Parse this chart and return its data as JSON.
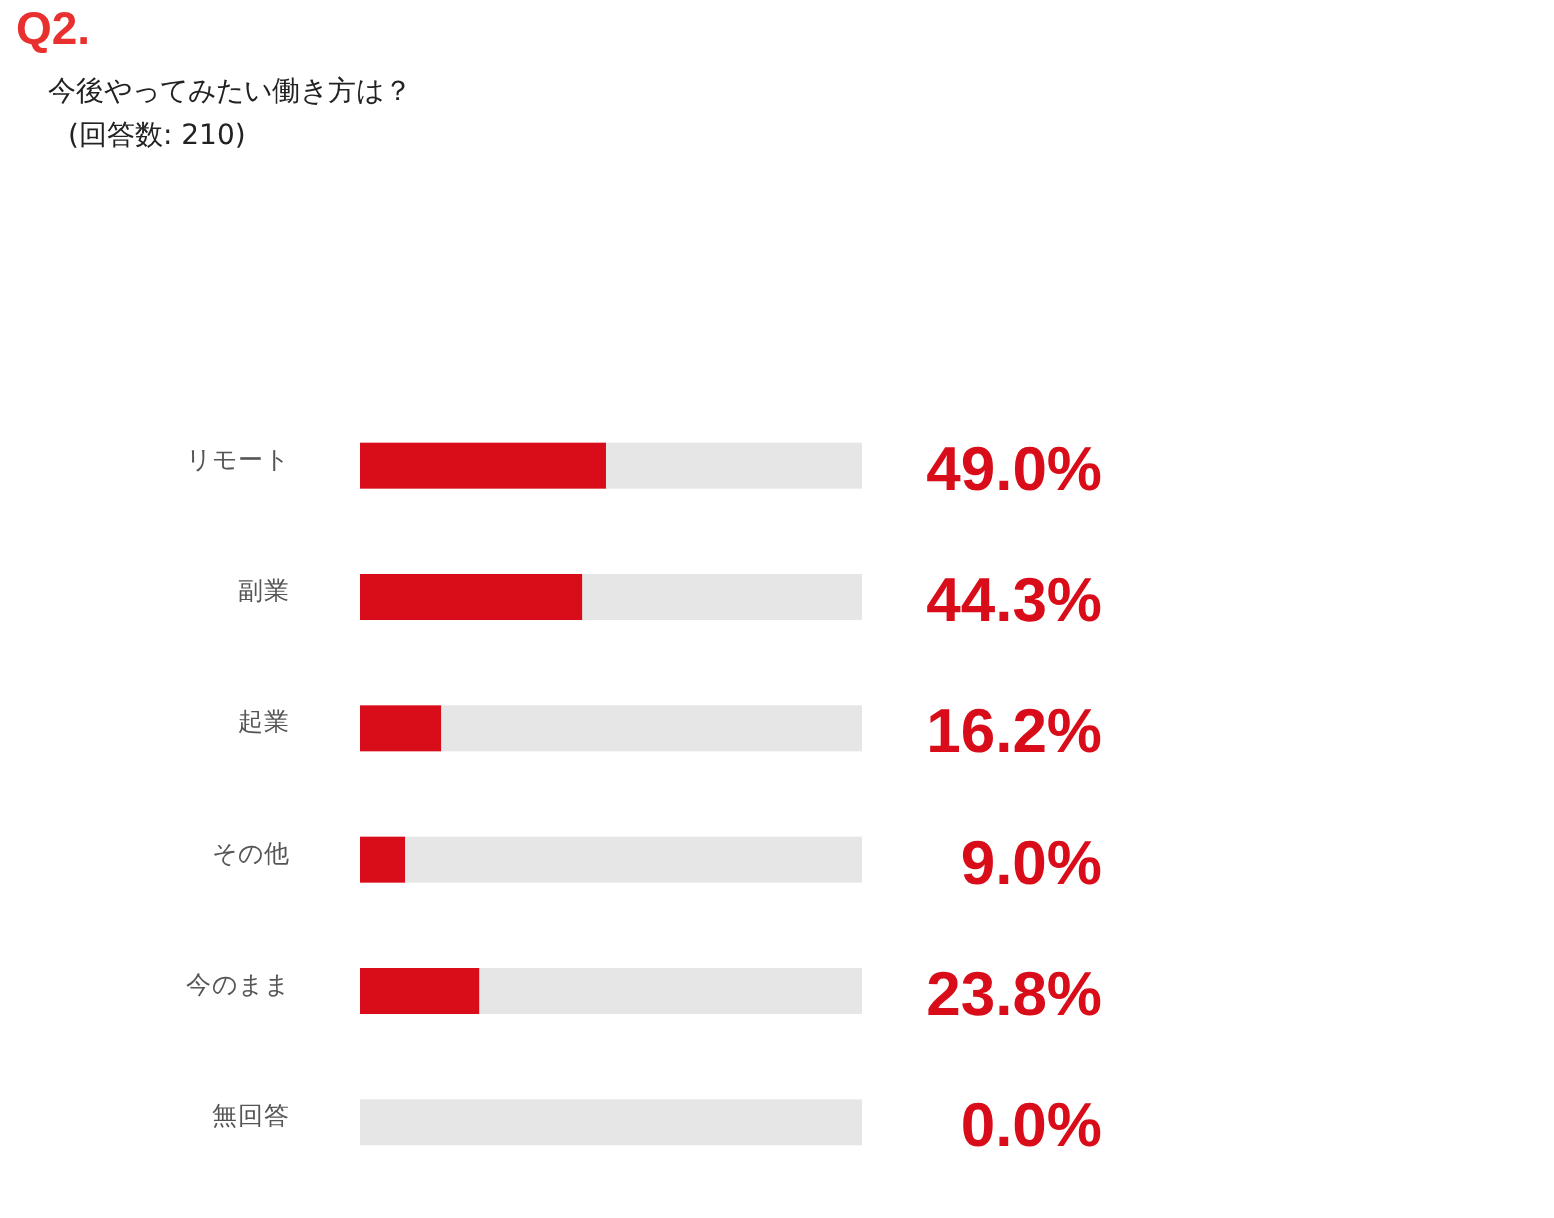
{
  "chart_data": {
    "type": "bar",
    "orientation": "horizontal",
    "stacked": true,
    "title": "Q2.",
    "subtitle": "今後やってみたい働き方は？",
    "annotations": [
      "(回答数: 210)"
    ],
    "categories": [
      "リモート",
      "副業",
      "起業",
      "その他",
      "今のまま",
      "無回答"
    ],
    "series": [
      {
        "color": "#d90d1a",
        "values": [
          49.0,
          44.3,
          16.2,
          9.0,
          23.8,
          0.0
        ],
        "value_labels": [
          "49.0%",
          "44.3%",
          "16.2%",
          "9.0%",
          "23.8%",
          "0.0%"
        ]
      },
      {
        "color": "#e6e6e6",
        "values": [
          51.0,
          55.7,
          83.8,
          91.0,
          76.2,
          100.0
        ]
      }
    ],
    "xlim": [
      0,
      100
    ],
    "tick_labels": "y"
  }
}
